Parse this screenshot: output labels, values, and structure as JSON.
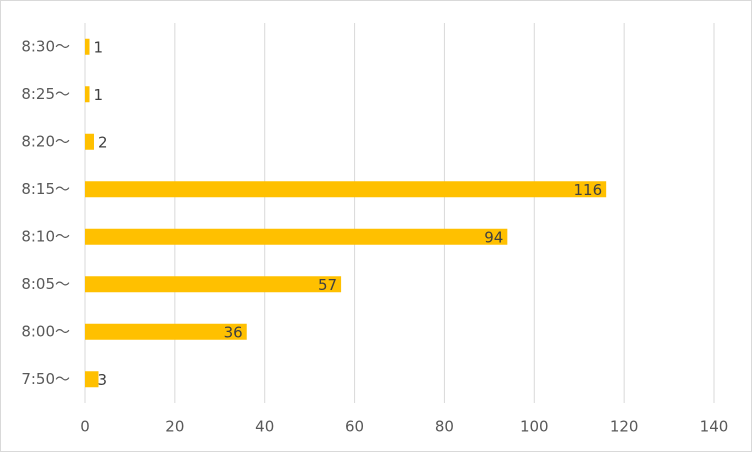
{
  "chart_data": {
    "type": "bar",
    "orientation": "horizontal",
    "categories": [
      "7:50〜",
      "8:00〜",
      "8:05〜",
      "8:10〜",
      "8:15〜",
      "8:20〜",
      "8:25〜",
      "8:30〜"
    ],
    "values": [
      3,
      36,
      57,
      94,
      116,
      2,
      1,
      1
    ],
    "color": "#ffc000",
    "xlim": [
      0,
      140
    ],
    "xticks": [
      0,
      20,
      40,
      60,
      80,
      100,
      120,
      140
    ],
    "grid": true
  }
}
